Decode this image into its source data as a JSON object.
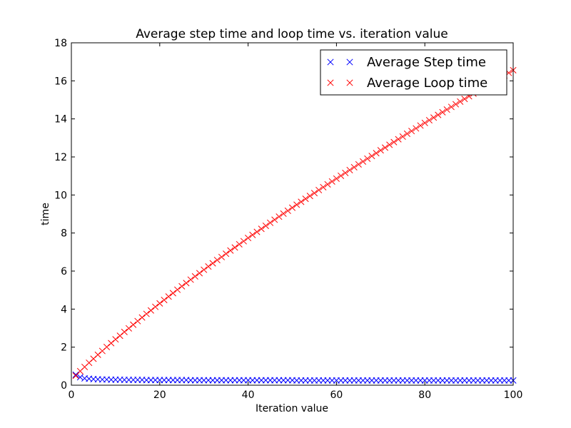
{
  "chart_data": {
    "type": "scatter",
    "title": "Average step time and loop time vs. iteration value",
    "xlabel": "Iteration value",
    "ylabel": "time",
    "xlim": [
      0,
      100
    ],
    "ylim": [
      0,
      18
    ],
    "x_ticks": [
      0,
      20,
      40,
      60,
      80,
      100
    ],
    "y_ticks": [
      0,
      2,
      4,
      6,
      8,
      10,
      12,
      14,
      16,
      18
    ],
    "grid": false,
    "legend_position": "top-right",
    "marker": "x",
    "series": [
      {
        "name": "Average Step time",
        "color": "#0000ff",
        "x_start": 1,
        "x_end": 100,
        "values": [
          0.55,
          0.42,
          0.36,
          0.34,
          0.32,
          0.31,
          0.3,
          0.3,
          0.29,
          0.29,
          0.29,
          0.28,
          0.28,
          0.28,
          0.28,
          0.28,
          0.27,
          0.27,
          0.27,
          0.27,
          0.27,
          0.27,
          0.27,
          0.27,
          0.27,
          0.27,
          0.26,
          0.26,
          0.26,
          0.26,
          0.26,
          0.26,
          0.26,
          0.26,
          0.26,
          0.26,
          0.26,
          0.26,
          0.26,
          0.26,
          0.26,
          0.26,
          0.26,
          0.26,
          0.26,
          0.26,
          0.26,
          0.26,
          0.26,
          0.26,
          0.25,
          0.25,
          0.25,
          0.25,
          0.25,
          0.25,
          0.25,
          0.25,
          0.25,
          0.25,
          0.25,
          0.25,
          0.25,
          0.25,
          0.25,
          0.25,
          0.25,
          0.25,
          0.25,
          0.25,
          0.25,
          0.25,
          0.25,
          0.25,
          0.25,
          0.25,
          0.25,
          0.25,
          0.25,
          0.25,
          0.25,
          0.25,
          0.25,
          0.25,
          0.25,
          0.25,
          0.25,
          0.25,
          0.25,
          0.25,
          0.25,
          0.25,
          0.25,
          0.25,
          0.25,
          0.25,
          0.25,
          0.25,
          0.25,
          0.25
        ]
      },
      {
        "name": "Average Loop time",
        "color": "#ff0000",
        "x_start": 1,
        "x_end": 100,
        "values": [
          0.5,
          0.74,
          0.96,
          1.18,
          1.39,
          1.6,
          1.8,
          2.01,
          2.21,
          2.41,
          2.6,
          2.8,
          2.99,
          3.18,
          3.37,
          3.56,
          3.75,
          3.93,
          4.12,
          4.3,
          4.48,
          4.66,
          4.84,
          5.02,
          5.2,
          5.37,
          5.55,
          5.72,
          5.89,
          6.07,
          6.24,
          6.41,
          6.58,
          6.74,
          6.91,
          7.08,
          7.24,
          7.41,
          7.57,
          7.74,
          7.9,
          8.06,
          8.22,
          8.38,
          8.54,
          8.7,
          8.86,
          9.02,
          9.17,
          9.33,
          9.49,
          9.64,
          9.8,
          9.95,
          10.1,
          10.26,
          10.41,
          10.56,
          10.71,
          10.86,
          11.01,
          11.16,
          11.31,
          11.46,
          11.61,
          11.76,
          11.91,
          12.05,
          12.2,
          12.35,
          12.49,
          12.64,
          12.78,
          12.93,
          13.07,
          13.22,
          13.36,
          13.5,
          13.65,
          13.79,
          13.93,
          14.07,
          14.21,
          14.35,
          14.49,
          14.63,
          14.77,
          14.91,
          15.05,
          15.19,
          15.33,
          15.47,
          15.6,
          15.74,
          15.88,
          16.01,
          16.15,
          16.29,
          16.42,
          16.56
        ]
      }
    ]
  }
}
